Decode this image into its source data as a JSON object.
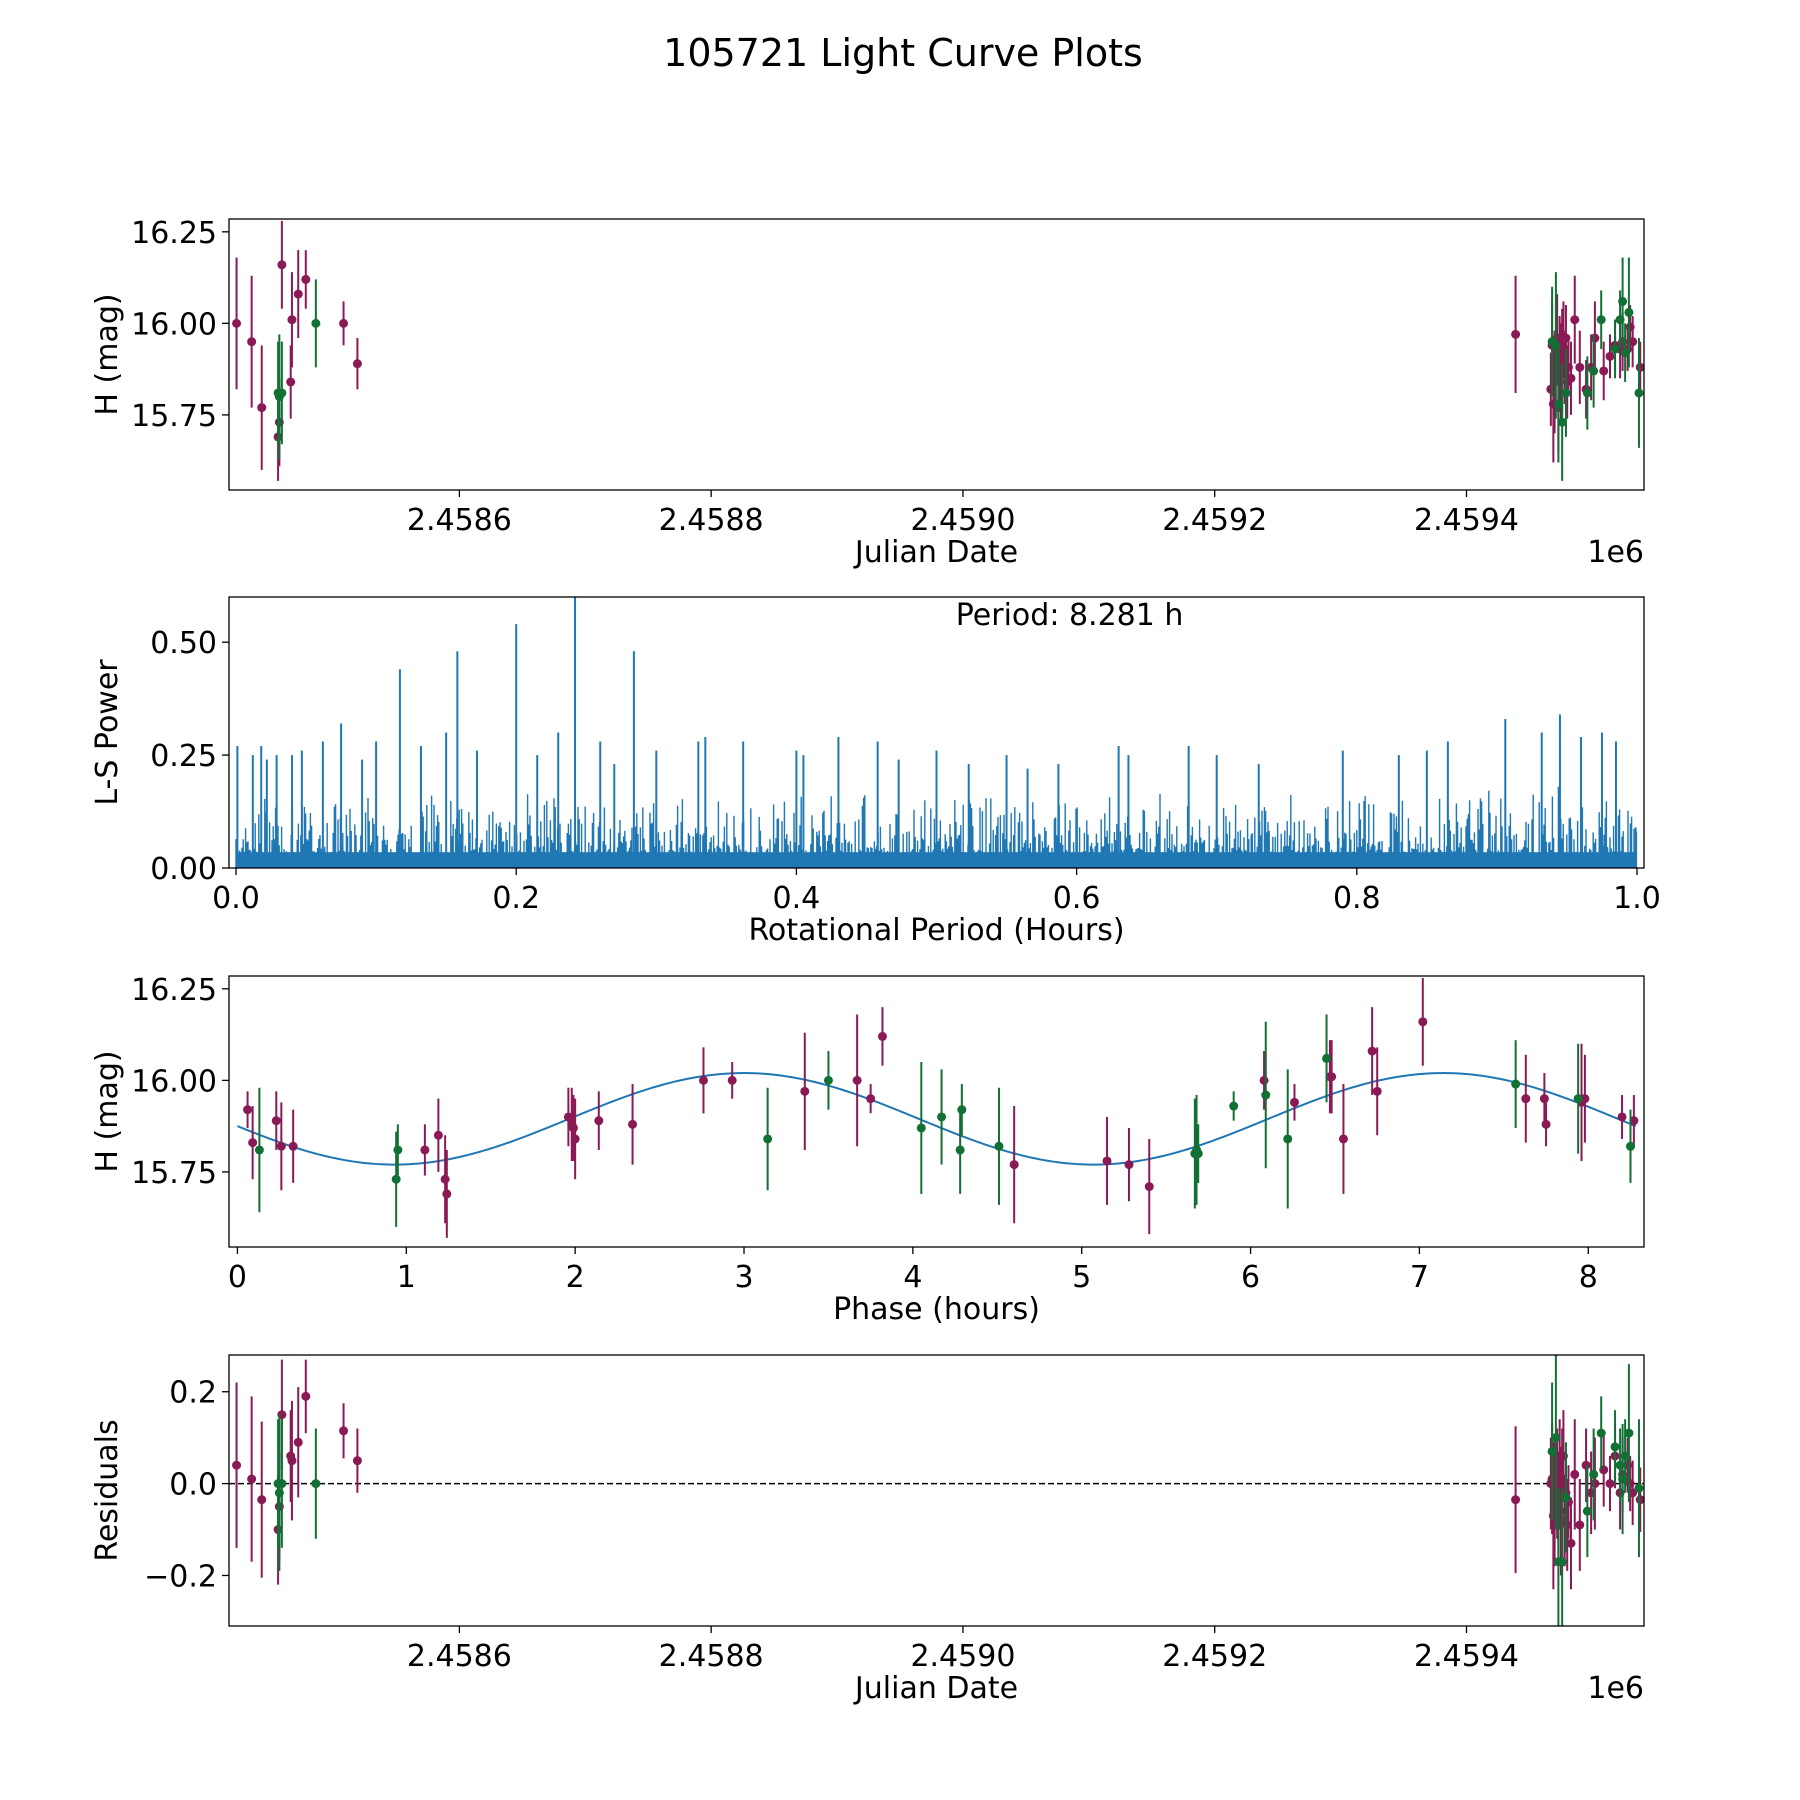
{
  "figure": {
    "title": "105721 Light Curve Plots"
  },
  "colors": {
    "magenta": "#8a1a55",
    "green": "#127035",
    "blue": "#1f77b4",
    "axis": "#000000"
  },
  "chart_data": [
    {
      "id": "lc",
      "type": "scatter",
      "xlabel": "Julian Date",
      "ylabel": "H (mag)",
      "offset_label": "1e6",
      "xlim": [
        2458417,
        2459541
      ],
      "ylim": [
        15.545,
        16.285
      ],
      "xticks": [
        2458600,
        2458800,
        2459000,
        2459200,
        2459400
      ],
      "xtick_labels": [
        "2.4586",
        "2.4588",
        "2.4590",
        "2.4592",
        "2.4594"
      ],
      "yticks": [
        15.75,
        16.0,
        16.25
      ],
      "ytick_labels": [
        "15.75",
        "16.00",
        "16.25"
      ],
      "series": [
        {
          "name": "magenta",
          "color_key": "magenta",
          "x": [
            2458423,
            2458435,
            2458443,
            2458456,
            2458457,
            2458459,
            2458466,
            2458467,
            2458472,
            2458478,
            2458508,
            2458519,
            2459439,
            2459467,
            2459468,
            2459469,
            2459470,
            2459472,
            2459473,
            2459474,
            2459475,
            2459476,
            2459477,
            2459478,
            2459479,
            2459480,
            2459481,
            2459483,
            2459486,
            2459490,
            2459495,
            2459499,
            2459502,
            2459509,
            2459514,
            2459518,
            2459522,
            2459524,
            2459528,
            2459530,
            2459532,
            2459538
          ],
          "y": [
            16.0,
            15.95,
            15.77,
            15.69,
            15.73,
            16.16,
            15.84,
            16.01,
            16.08,
            16.12,
            16.0,
            15.89,
            15.97,
            15.82,
            15.94,
            15.78,
            15.84,
            15.96,
            15.77,
            15.9,
            15.86,
            15.9,
            15.96,
            15.88,
            15.96,
            15.84,
            15.88,
            15.85,
            16.01,
            15.88,
            15.82,
            15.88,
            15.96,
            15.87,
            15.91,
            15.94,
            15.93,
            15.95,
            15.93,
            15.99,
            15.95,
            15.88
          ],
          "err": [
            0.18,
            0.18,
            0.17,
            0.12,
            0.12,
            0.12,
            0.1,
            0.13,
            0.12,
            0.08,
            0.06,
            0.07,
            0.16,
            0.1,
            0.12,
            0.16,
            0.14,
            0.12,
            0.12,
            0.12,
            0.14,
            0.14,
            0.1,
            0.1,
            0.09,
            0.1,
            0.08,
            0.1,
            0.12,
            0.1,
            0.08,
            0.09,
            0.1,
            0.08,
            0.06,
            0.07,
            0.08,
            0.08,
            0.06,
            0.06,
            0.07,
            0.07
          ]
        },
        {
          "name": "green",
          "color_key": "green",
          "x": [
            2458456,
            2458457,
            2458459,
            2458486,
            2459468,
            2459471,
            2459473,
            2459476,
            2459479,
            2459496,
            2459501,
            2459507,
            2459518,
            2459522,
            2459524,
            2459526,
            2459529,
            2459537
          ],
          "y": [
            15.81,
            15.8,
            15.81,
            16.0,
            15.95,
            15.94,
            15.78,
            15.73,
            15.81,
            15.81,
            15.87,
            16.01,
            15.93,
            16.01,
            16.06,
            15.92,
            16.03,
            15.81
          ],
          "err": [
            0.14,
            0.17,
            0.14,
            0.12,
            0.15,
            0.2,
            0.16,
            0.16,
            0.12,
            0.1,
            0.1,
            0.08,
            0.08,
            0.08,
            0.12,
            0.08,
            0.15,
            0.15
          ]
        }
      ]
    },
    {
      "id": "ls",
      "type": "line",
      "xlabel": "Rotational Period (Hours)",
      "ylabel": "L-S Power",
      "annotation": "Period: 8.281 h",
      "xlim": [
        -0.005,
        1.005
      ],
      "ylim": [
        0,
        0.6
      ],
      "xticks": [
        0,
        0.2,
        0.4,
        0.6,
        0.8,
        1.0
      ],
      "xtick_labels": [
        "0.0",
        "0.2",
        "0.4",
        "0.6",
        "0.8",
        "1.0"
      ],
      "yticks": [
        0,
        0.25,
        0.5
      ],
      "ytick_labels": [
        "0.00",
        "0.25",
        "0.50"
      ],
      "peaks": {
        "x": [
          0.001,
          0.012,
          0.018,
          0.022,
          0.029,
          0.04,
          0.047,
          0.062,
          0.075,
          0.09,
          0.1,
          0.117,
          0.132,
          0.15,
          0.158,
          0.172,
          0.2,
          0.215,
          0.23,
          0.242,
          0.26,
          0.27,
          0.284,
          0.3,
          0.33,
          0.335,
          0.362,
          0.4,
          0.405,
          0.43,
          0.458,
          0.473,
          0.5,
          0.523,
          0.55,
          0.565,
          0.587,
          0.63,
          0.637,
          0.68,
          0.7,
          0.73,
          0.79,
          0.83,
          0.85,
          0.865,
          0.906,
          0.932,
          0.945,
          0.96,
          0.975,
          0.985,
          0.999
        ],
        "y": [
          0.27,
          0.25,
          0.27,
          0.24,
          0.25,
          0.25,
          0.26,
          0.28,
          0.32,
          0.24,
          0.28,
          0.44,
          0.27,
          0.3,
          0.48,
          0.26,
          0.54,
          0.25,
          0.3,
          0.6,
          0.28,
          0.23,
          0.48,
          0.26,
          0.28,
          0.29,
          0.28,
          0.26,
          0.25,
          0.29,
          0.28,
          0.24,
          0.26,
          0.23,
          0.25,
          0.22,
          0.23,
          0.27,
          0.25,
          0.27,
          0.25,
          0.23,
          0.26,
          0.25,
          0.26,
          0.28,
          0.33,
          0.3,
          0.34,
          0.29,
          0.3,
          0.28,
          0.09
        ]
      }
    },
    {
      "id": "ph",
      "type": "scatter",
      "xlabel": "Phase (hours)",
      "ylabel": "H (mag)",
      "xlim": [
        -0.05,
        8.33
      ],
      "ylim": [
        15.545,
        16.285
      ],
      "xticks": [
        0,
        1,
        2,
        3,
        4,
        5,
        6,
        7,
        8
      ],
      "xtick_labels": [
        "0",
        "1",
        "2",
        "3",
        "4",
        "5",
        "6",
        "7",
        "8"
      ],
      "yticks": [
        15.75,
        16.0,
        16.25
      ],
      "ytick_labels": [
        "15.75",
        "16.00",
        "16.25"
      ],
      "fit": {
        "mean": 15.895,
        "amplitude": 0.125,
        "period": 4.1405,
        "peak_phase": 3.0
      },
      "series": [
        {
          "name": "magenta",
          "color_key": "magenta",
          "x": [
            0.06,
            0.09,
            0.23,
            0.26,
            0.33,
            1.11,
            1.19,
            1.23,
            1.24,
            1.96,
            1.98,
            1.99,
            2.0,
            2.14,
            2.34,
            2.76,
            2.93,
            3.36,
            3.67,
            3.75,
            3.82,
            4.6,
            5.15,
            5.28,
            5.4,
            6.08,
            6.26,
            6.47,
            6.48,
            6.55,
            6.72,
            6.75,
            7.02,
            7.63,
            7.74,
            7.75,
            7.96,
            7.98,
            8.2,
            8.27
          ],
          "y": [
            15.92,
            15.83,
            15.89,
            15.82,
            15.82,
            15.81,
            15.85,
            15.73,
            15.69,
            15.9,
            15.88,
            15.87,
            15.84,
            15.89,
            15.88,
            16.0,
            16.0,
            15.97,
            16.0,
            15.95,
            16.12,
            15.77,
            15.78,
            15.77,
            15.71,
            16.0,
            15.94,
            16.01,
            16.01,
            15.84,
            16.08,
            15.97,
            16.16,
            15.95,
            15.95,
            15.88,
            15.94,
            15.95,
            15.9,
            15.89
          ],
          "err": [
            0.05,
            0.1,
            0.08,
            0.12,
            0.1,
            0.07,
            0.1,
            0.12,
            0.12,
            0.08,
            0.1,
            0.09,
            0.11,
            0.08,
            0.11,
            0.09,
            0.05,
            0.16,
            0.18,
            0.04,
            0.08,
            0.16,
            0.12,
            0.1,
            0.13,
            0.08,
            0.05,
            0.1,
            0.1,
            0.15,
            0.12,
            0.12,
            0.12,
            0.12,
            0.07,
            0.06,
            0.16,
            0.12,
            0.06,
            0.07
          ]
        },
        {
          "name": "green",
          "color_key": "green",
          "x": [
            0.13,
            0.94,
            0.95,
            3.14,
            3.5,
            4.05,
            4.17,
            4.28,
            4.29,
            4.51,
            5.67,
            5.68,
            5.69,
            5.9,
            6.09,
            6.22,
            6.45,
            7.57,
            7.94,
            8.25
          ],
          "y": [
            15.81,
            15.73,
            15.81,
            15.84,
            16.0,
            15.87,
            15.9,
            15.81,
            15.92,
            15.82,
            15.8,
            15.81,
            15.8,
            15.93,
            15.96,
            15.84,
            16.06,
            15.99,
            15.95,
            15.82
          ],
          "err": [
            0.17,
            0.13,
            0.07,
            0.14,
            0.08,
            0.18,
            0.13,
            0.12,
            0.07,
            0.16,
            0.15,
            0.15,
            0.08,
            0.04,
            0.2,
            0.19,
            0.12,
            0.12,
            0.15,
            0.1
          ]
        }
      ]
    },
    {
      "id": "res",
      "type": "scatter",
      "xlabel": "Julian Date",
      "ylabel": "Residuals",
      "offset_label": "1e6",
      "xlim": [
        2458417,
        2459541
      ],
      "ylim": [
        -0.31,
        0.28
      ],
      "xticks": [
        2458600,
        2458800,
        2459000,
        2459200,
        2459400
      ],
      "xtick_labels": [
        "2.4586",
        "2.4588",
        "2.4590",
        "2.4592",
        "2.4594"
      ],
      "yticks": [
        -0.2,
        0.0,
        0.2
      ],
      "ytick_labels": [
        "−0.2",
        "0.0",
        "0.2"
      ],
      "zero_line": 0,
      "series": [
        {
          "name": "magenta",
          "color_key": "magenta",
          "x": [
            2458423,
            2458435,
            2458443,
            2458456,
            2458457,
            2458459,
            2458466,
            2458467,
            2458472,
            2458478,
            2458508,
            2458519,
            2459439,
            2459467,
            2459468,
            2459469,
            2459470,
            2459472,
            2459473,
            2459474,
            2459475,
            2459476,
            2459477,
            2459478,
            2459479,
            2459480,
            2459481,
            2459483,
            2459486,
            2459490,
            2459495,
            2459499,
            2459502,
            2459509,
            2459514,
            2459518,
            2459522,
            2459524,
            2459528,
            2459530,
            2459532,
            2459538
          ],
          "y": [
            0.04,
            0.01,
            -0.035,
            -0.1,
            -0.05,
            0.15,
            0.06,
            0.05,
            0.09,
            0.19,
            0.115,
            0.05,
            -0.035,
            0.0,
            0.01,
            -0.07,
            -0.04,
            0.0,
            -0.05,
            0.02,
            -0.06,
            -0.02,
            0.06,
            -0.08,
            -0.02,
            -0.09,
            -0.04,
            -0.13,
            0.02,
            -0.09,
            0.04,
            -0.02,
            0.0,
            0.03,
            0.0,
            0.06,
            -0.02,
            0.02,
            0.04,
            0.0,
            -0.02,
            -0.035
          ],
          "err": [
            0.18,
            0.18,
            0.17,
            0.12,
            0.12,
            0.12,
            0.1,
            0.13,
            0.12,
            0.08,
            0.06,
            0.07,
            0.16,
            0.1,
            0.12,
            0.16,
            0.14,
            0.12,
            0.12,
            0.12,
            0.14,
            0.14,
            0.1,
            0.1,
            0.09,
            0.1,
            0.08,
            0.1,
            0.12,
            0.1,
            0.08,
            0.09,
            0.1,
            0.08,
            0.06,
            0.07,
            0.08,
            0.08,
            0.06,
            0.06,
            0.07,
            0.07
          ]
        },
        {
          "name": "green",
          "color_key": "green",
          "x": [
            2458456,
            2458457,
            2458459,
            2458486,
            2459468,
            2459471,
            2459473,
            2459476,
            2459479,
            2459496,
            2459501,
            2459507,
            2459518,
            2459522,
            2459524,
            2459526,
            2459529,
            2459537
          ],
          "y": [
            0.0,
            -0.02,
            0.0,
            0.0,
            0.07,
            0.1,
            -0.17,
            -0.17,
            -0.03,
            -0.06,
            0.02,
            0.11,
            0.08,
            0.04,
            0.01,
            0.06,
            0.11,
            -0.01
          ],
          "err": [
            0.14,
            0.17,
            0.14,
            0.12,
            0.15,
            0.2,
            0.16,
            0.16,
            0.12,
            0.1,
            0.1,
            0.08,
            0.08,
            0.08,
            0.12,
            0.08,
            0.15,
            0.15
          ]
        }
      ]
    }
  ]
}
